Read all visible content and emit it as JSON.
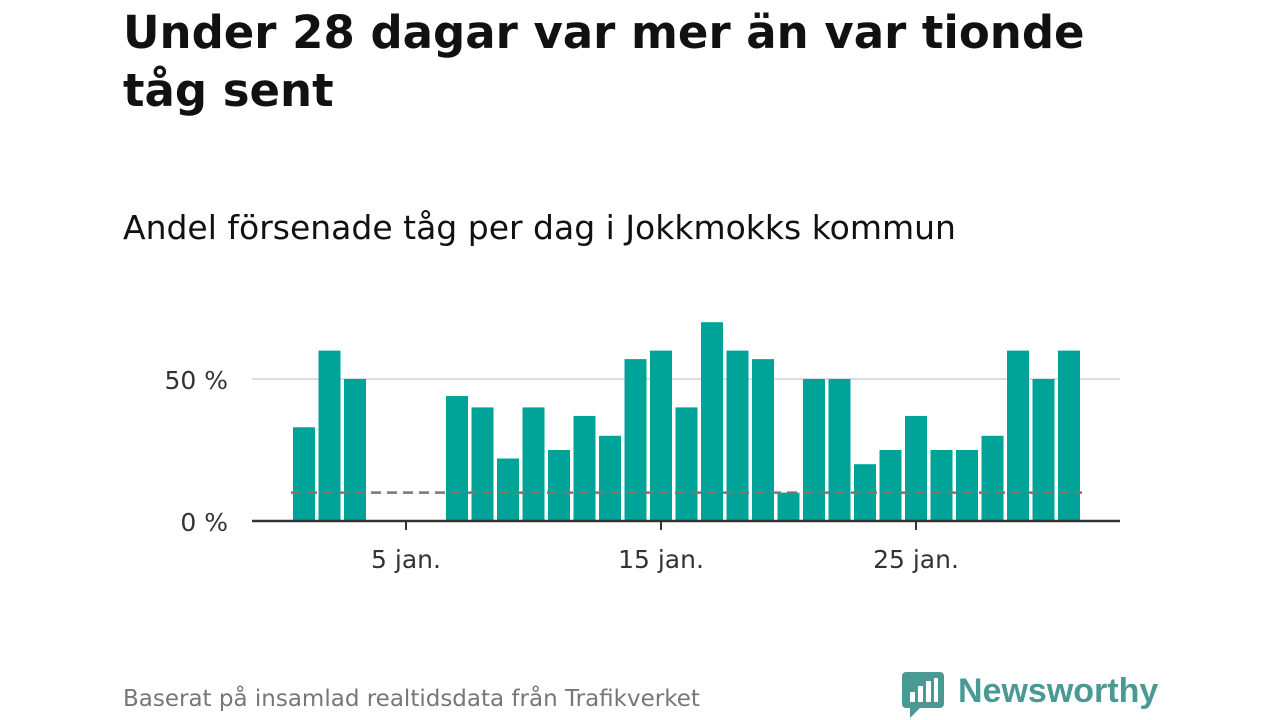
{
  "title": "Under 28 dagar var mer än var tionde tåg sent",
  "subtitle": "Andel försenade tåg per dag i Jokkmokks kommun",
  "source": "Baserat på insamlad realtidsdata från Trafikverket",
  "brand": {
    "name": "Newsworthy",
    "icon": "newsworthy-logo-icon",
    "color": "#4a9a93"
  },
  "colors": {
    "bar": "#00a398",
    "reference_line": "#777777",
    "grid": "#dddddd",
    "axis": "#333333"
  },
  "chart_data": {
    "type": "bar",
    "x": [
      "1 jan.",
      "2 jan.",
      "3 jan.",
      "4 jan.",
      "5 jan.",
      "6 jan.",
      "7 jan.",
      "8 jan.",
      "9 jan.",
      "10 jan.",
      "11 jan.",
      "12 jan.",
      "13 jan.",
      "14 jan.",
      "15 jan.",
      "16 jan.",
      "17 jan.",
      "18 jan.",
      "19 jan.",
      "20 jan.",
      "21 jan.",
      "22 jan.",
      "23 jan.",
      "24 jan.",
      "25 jan.",
      "26 jan.",
      "27 jan.",
      "28 jan.",
      "29 jan.",
      "30 jan.",
      "31 jan."
    ],
    "values": [
      33,
      60,
      50,
      0,
      0,
      0,
      44,
      40,
      22,
      40,
      25,
      37,
      30,
      57,
      60,
      40,
      70,
      60,
      57,
      10,
      50,
      50,
      20,
      25,
      37,
      25,
      25,
      30,
      60,
      50,
      60
    ],
    "reference_line": 10,
    "ylim": [
      0,
      75
    ],
    "yticks": [
      0,
      50
    ],
    "ytick_labels": [
      "0 %",
      "50 %"
    ],
    "xtick_labels": [
      "5 jan.",
      "15 jan.",
      "25 jan."
    ],
    "xlabel": "",
    "ylabel": "",
    "grid": true
  }
}
